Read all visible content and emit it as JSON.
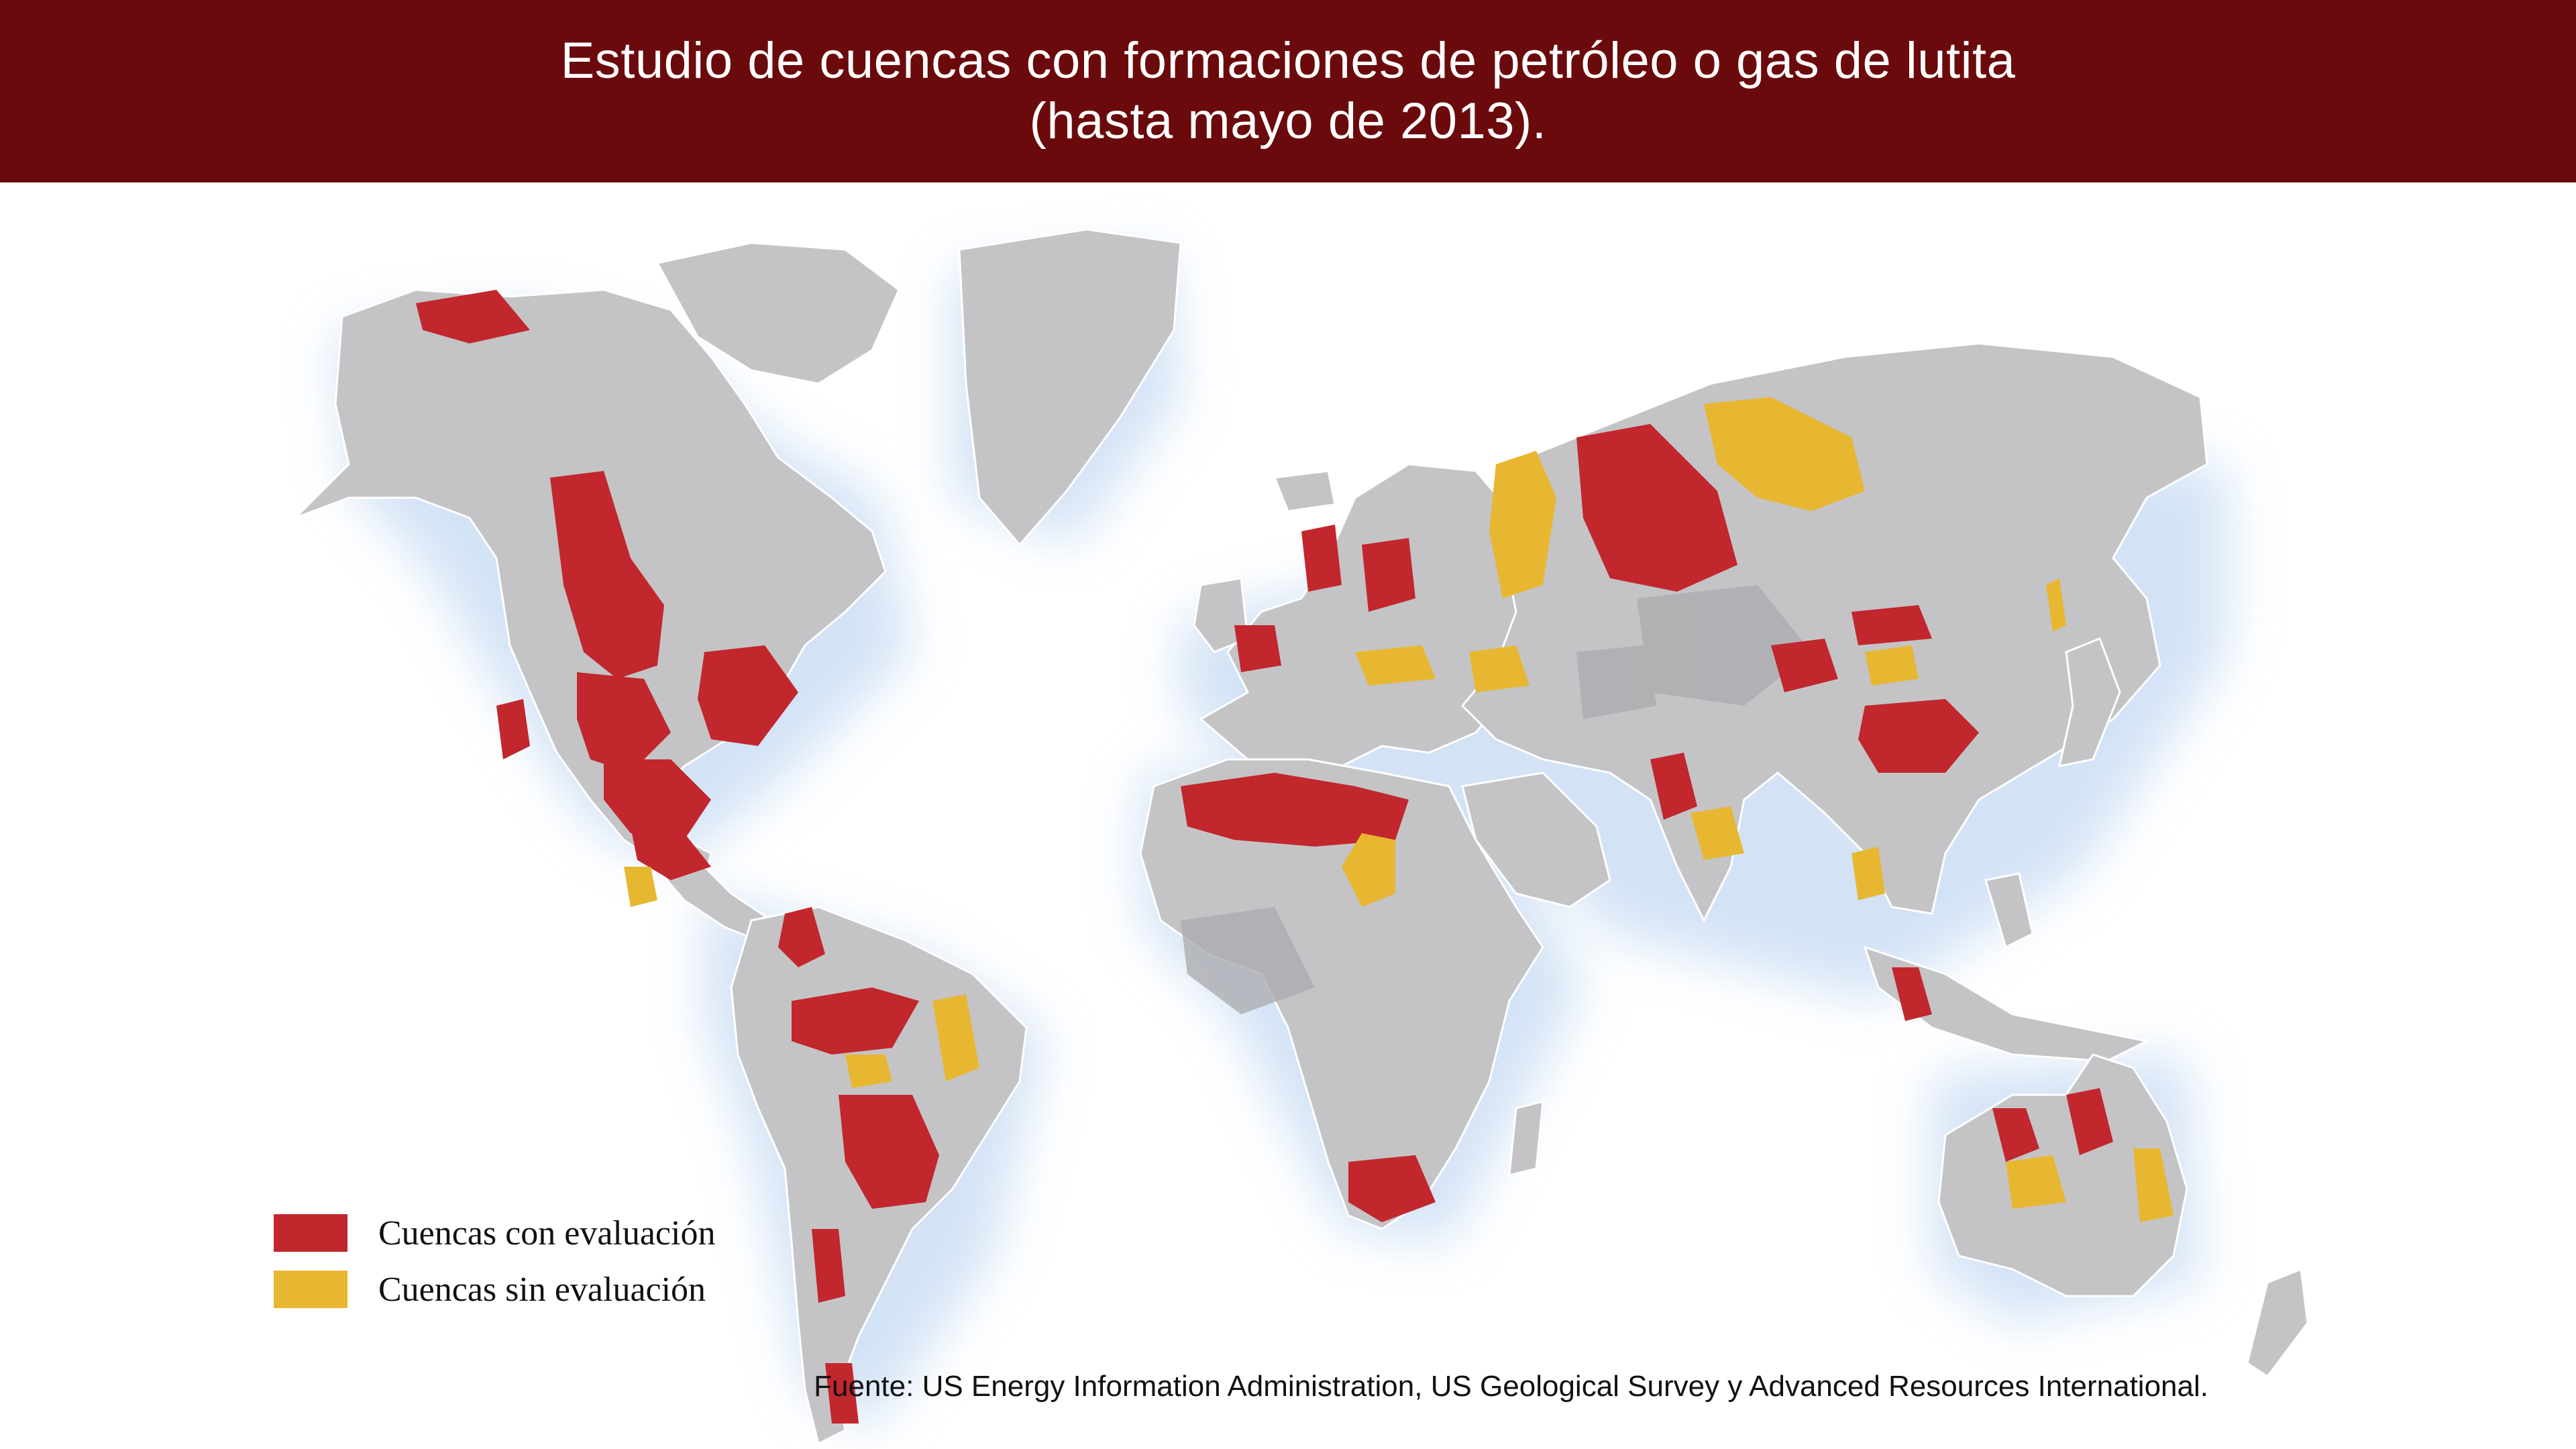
{
  "title": {
    "line1": "Estudio de cuencas con formaciones de petróleo o gas de lutita",
    "line2": "(hasta mayo de 2013)."
  },
  "colors": {
    "header_bg": "#6b0a0c",
    "land": "#c4c4c6",
    "land_dark": "#adadb0",
    "ocean_glow": "#cfe0f5",
    "assessed": "#c1272d",
    "unassessed": "#e8b731"
  },
  "legend": {
    "assessed_label": "Cuencas con evaluación",
    "unassessed_label": "Cuencas sin evaluación"
  },
  "source": "Fuente: US Energy Information Administration, US Geological Survey y Advanced Resources International."
}
